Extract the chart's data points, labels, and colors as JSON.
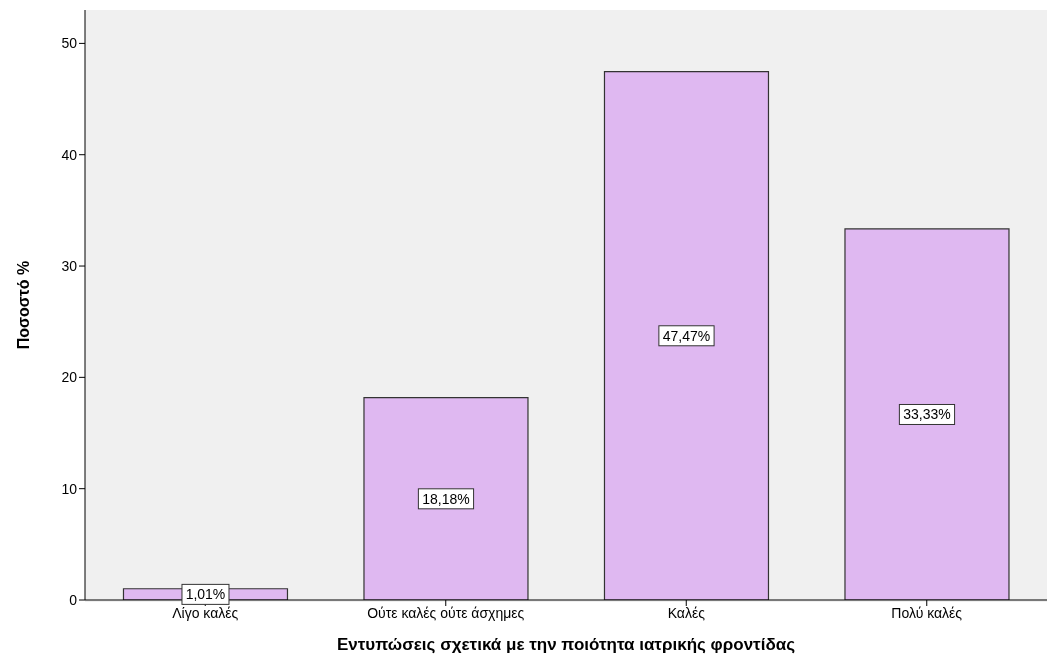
{
  "chart_data": {
    "type": "bar",
    "xlabel": "Εντυπώσεις σχετικά με την ποιότητα ιατρικής φροντίδας",
    "ylabel": "Ποσοστό %",
    "categories": [
      "Λίγο καλές",
      "Ούτε καλές ούτε άσχημες",
      "Καλές",
      "Πολύ καλές"
    ],
    "values": [
      1.01,
      18.18,
      47.47,
      33.33
    ],
    "value_labels": [
      "1,01%",
      "18,18%",
      "47,47%",
      "33,33%"
    ],
    "color": "#dfb8f1",
    "ylim": [
      0,
      53
    ],
    "yticks": [
      0,
      10,
      20,
      30,
      40,
      50
    ],
    "grid": false
  }
}
